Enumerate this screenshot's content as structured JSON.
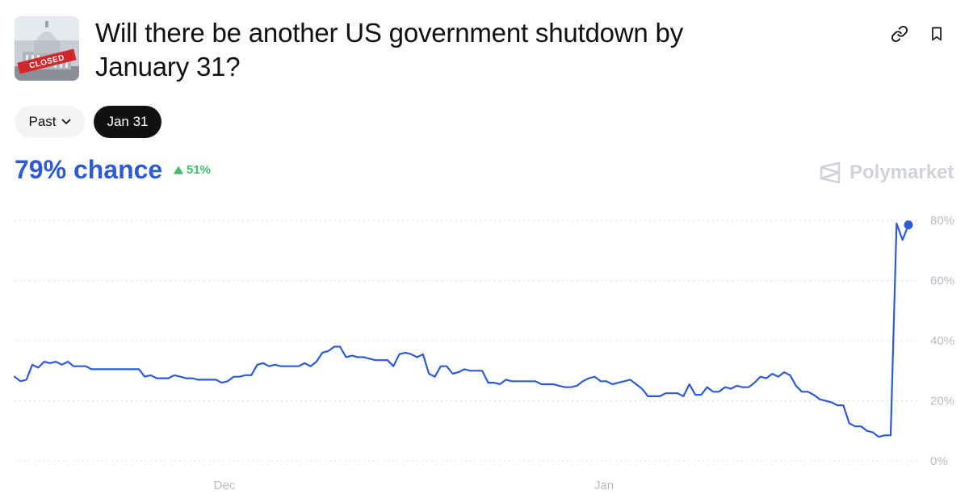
{
  "market": {
    "image_label": "CLOSED",
    "title": "Will there be another US government shutdown by January 31?"
  },
  "icons": {
    "link": "link-icon",
    "bookmark": "bookmark-icon",
    "dropdown": "chevron-down-icon",
    "up": "triangle-up-icon",
    "brand": "polymarket-logo-icon"
  },
  "filters": {
    "past_label": "Past",
    "date_label": "Jan 31"
  },
  "stats": {
    "chance": "79% chance",
    "change": "51%"
  },
  "brand": {
    "name": "Polymarket"
  },
  "colors": {
    "line": "#2d5bd6",
    "up": "#3fbf6a",
    "dark": "#111111",
    "grid": "#d9dce1",
    "axis_text": "#b8bcc3"
  },
  "chart_data": {
    "type": "line",
    "x_tick_labels": [
      "Dec",
      "Jan"
    ],
    "y_ticks": [
      0,
      20,
      40,
      60,
      80
    ],
    "y_tick_labels": [
      "0%",
      "20%",
      "40%",
      "60%",
      "80%"
    ],
    "ylim": [
      0,
      80
    ],
    "grid": true,
    "series": [
      {
        "values": [
          28,
          26.5,
          27,
          32,
          31,
          33,
          32.5,
          33,
          32,
          33,
          31.5,
          31.5,
          31.5,
          30.5,
          30.5,
          30.5,
          30.5,
          30.5,
          30.5,
          30.5,
          30.5,
          30.5,
          28,
          28.5,
          27.5,
          27.5,
          27.5,
          28.5,
          28,
          27.5,
          27.5,
          27,
          27,
          27,
          27,
          26,
          26.5,
          28,
          28,
          28.5,
          28.5,
          32,
          32.5,
          31.5,
          32,
          31.5,
          31.5,
          31.5,
          31.5,
          32.5,
          31.5,
          33,
          36,
          36.5,
          38,
          38,
          34.5,
          35,
          34.5,
          34.5,
          34,
          33.5,
          33.5,
          33.5,
          31.5,
          35.5,
          36,
          35.5,
          34.5,
          35.5,
          29,
          28,
          31.5,
          31.5,
          29,
          29.5,
          30.5,
          30,
          30,
          30,
          26,
          26,
          25.5,
          27,
          26.5,
          26.5,
          26.5,
          26.5,
          26.5,
          25.5,
          25.5,
          25.5,
          25,
          24.5,
          24.5,
          25,
          26.5,
          27.5,
          28,
          26.5,
          26.5,
          25.5,
          26,
          26.5,
          27,
          25.5,
          24,
          21.5,
          21.5,
          21.5,
          22.5,
          22.5,
          22.5,
          21.5,
          25.5,
          22,
          22,
          24.5,
          23,
          23,
          24.5,
          24,
          25,
          24.5,
          24.5,
          26,
          28,
          27.5,
          29,
          28,
          29.5,
          28.5,
          25,
          23,
          23,
          22,
          20.5,
          20,
          19.5,
          18.5,
          18.5,
          12.5,
          11.5,
          11.5,
          10,
          9.5,
          8,
          8.5,
          8.5,
          79,
          73.5,
          78.5
        ]
      }
    ]
  }
}
